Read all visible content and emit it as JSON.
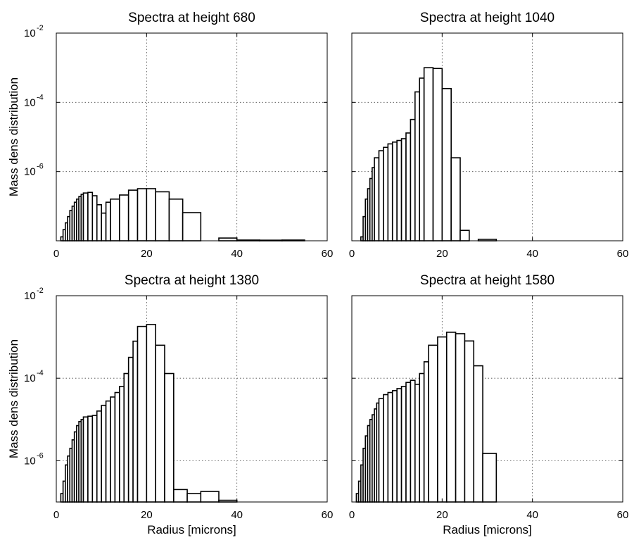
{
  "chart_data": [
    {
      "type": "bar",
      "title": "Spectra at height 680",
      "xlabel": "",
      "ylabel": "Mass dens distribution",
      "xlim": [
        0,
        60
      ],
      "ylim": [
        1e-08,
        0.01
      ],
      "yscale": "log",
      "grid": true,
      "xticks": [
        "0",
        "20",
        "40",
        "60"
      ],
      "yticks": [
        {
          "base": "10",
          "exp": "-2"
        },
        {
          "base": "10",
          "exp": "-4"
        },
        {
          "base": "10",
          "exp": "-6"
        }
      ],
      "bars": [
        [
          1.0,
          1.5,
          1.3e-08
        ],
        [
          1.5,
          2.0,
          2.1e-08
        ],
        [
          2.0,
          2.5,
          3.3e-08
        ],
        [
          2.5,
          3.0,
          5e-08
        ],
        [
          3.0,
          3.5,
          7.5e-08
        ],
        [
          3.5,
          4.0,
          1e-07
        ],
        [
          4.0,
          4.5,
          1.3e-07
        ],
        [
          4.5,
          5.0,
          1.6e-07
        ],
        [
          5.0,
          5.5,
          1.9e-07
        ],
        [
          5.5,
          6.0,
          2.2e-07
        ],
        [
          6.0,
          7.0,
          2.4e-07
        ],
        [
          7.0,
          8.0,
          2.5e-07
        ],
        [
          8.0,
          9.0,
          2e-07
        ],
        [
          9.0,
          10.0,
          1.1e-07
        ],
        [
          10.0,
          11.0,
          6.3e-08
        ],
        [
          11.0,
          12.0,
          1.3e-07
        ],
        [
          12.0,
          14.0,
          1.6e-07
        ],
        [
          14.0,
          16.0,
          2.1e-07
        ],
        [
          16.0,
          18.0,
          2.9e-07
        ],
        [
          18.0,
          20.0,
          3.2e-07
        ],
        [
          20.0,
          22.0,
          3.2e-07
        ],
        [
          22.0,
          25.0,
          2.6e-07
        ],
        [
          25.0,
          28.0,
          1.6e-07
        ],
        [
          28.0,
          32.0,
          6.5e-08
        ],
        [
          36.0,
          40.0,
          1.2e-08
        ],
        [
          40.0,
          45.0,
          1.05e-08
        ],
        [
          45.0,
          50.0,
          1.04e-08
        ],
        [
          50.0,
          55.0,
          1.05e-08
        ]
      ]
    },
    {
      "type": "bar",
      "title": "Spectra at height 1040",
      "xlabel": "",
      "ylabel": "",
      "xlim": [
        0,
        60
      ],
      "ylim": [
        1e-08,
        0.01
      ],
      "yscale": "log",
      "grid": true,
      "xticks": [
        "0",
        "20",
        "40",
        "60"
      ],
      "yticks": [],
      "bars": [
        [
          2.0,
          2.5,
          1.3e-08
        ],
        [
          2.5,
          3.0,
          5e-08
        ],
        [
          3.0,
          3.5,
          1.6e-07
        ],
        [
          3.5,
          4.0,
          3.2e-07
        ],
        [
          4.0,
          4.5,
          6.3e-07
        ],
        [
          4.5,
          5.0,
          1.3e-06
        ],
        [
          5.0,
          6.0,
          2.5e-06
        ],
        [
          6.0,
          7.0,
          4e-06
        ],
        [
          7.0,
          8.0,
          5e-06
        ],
        [
          8.0,
          9.0,
          6.3e-06
        ],
        [
          9.0,
          10.0,
          7.1e-06
        ],
        [
          10.0,
          11.0,
          7.9e-06
        ],
        [
          11.0,
          12.0,
          8.9e-06
        ],
        [
          12.0,
          13.0,
          1.3e-05
        ],
        [
          13.0,
          14.0,
          3.2e-05
        ],
        [
          14.0,
          15.0,
          0.0002
        ],
        [
          15.0,
          16.0,
          0.0005
        ],
        [
          16.0,
          18.0,
          0.001
        ],
        [
          18.0,
          20.0,
          0.00095
        ],
        [
          20.0,
          22.0,
          0.00025
        ],
        [
          22.0,
          24.0,
          2.5e-06
        ],
        [
          24.0,
          26.0,
          2e-08
        ],
        [
          28.0,
          32.0,
          1.1e-08
        ]
      ]
    },
    {
      "type": "bar",
      "title": "Spectra at height 1380",
      "xlabel": "Radius [microns]",
      "ylabel": "Mass dens distribution",
      "xlim": [
        0,
        60
      ],
      "ylim": [
        1e-07,
        0.01
      ],
      "yscale": "log",
      "grid": true,
      "xticks": [
        "0",
        "20",
        "40",
        "60"
      ],
      "yticks": [
        {
          "base": "10",
          "exp": "-2"
        },
        {
          "base": "10",
          "exp": "-4"
        },
        {
          "base": "10",
          "exp": "-6"
        }
      ],
      "bars": [
        [
          1.0,
          1.5,
          1.6e-07
        ],
        [
          1.5,
          2.0,
          3.2e-07
        ],
        [
          2.0,
          2.5,
          7.9e-07
        ],
        [
          2.5,
          3.0,
          1.3e-06
        ],
        [
          3.0,
          3.5,
          2e-06
        ],
        [
          3.5,
          4.0,
          3.2e-06
        ],
        [
          4.0,
          4.5,
          5e-06
        ],
        [
          4.5,
          5.0,
          7.1e-06
        ],
        [
          5.0,
          5.5,
          8.9e-06
        ],
        [
          5.5,
          6.0,
          1e-05
        ],
        [
          6.0,
          7.0,
          1.15e-05
        ],
        [
          7.0,
          8.0,
          1.2e-05
        ],
        [
          8.0,
          9.0,
          1.25e-05
        ],
        [
          9.0,
          10.0,
          1.6e-05
        ],
        [
          10.0,
          11.0,
          2.2e-05
        ],
        [
          11.0,
          12.0,
          2.8e-05
        ],
        [
          12.0,
          13.0,
          3.5e-05
        ],
        [
          13.0,
          14.0,
          4.5e-05
        ],
        [
          14.0,
          15.0,
          6.3e-05
        ],
        [
          15.0,
          16.0,
          0.00013
        ],
        [
          16.0,
          17.0,
          0.00032
        ],
        [
          17.0,
          18.0,
          0.00079
        ],
        [
          18.0,
          20.0,
          0.0018
        ],
        [
          20.0,
          22.0,
          0.002
        ],
        [
          22.0,
          24.0,
          0.00063
        ],
        [
          24.0,
          26.0,
          0.00013
        ],
        [
          26.0,
          29.0,
          2e-07
        ],
        [
          29.0,
          32.0,
          1.6e-07
        ],
        [
          32.0,
          36.0,
          1.8e-07
        ],
        [
          36.0,
          40.0,
          1.1e-07
        ]
      ]
    },
    {
      "type": "bar",
      "title": "Spectra at height 1580",
      "xlabel": "Radius [microns]",
      "ylabel": "",
      "xlim": [
        0,
        60
      ],
      "ylim": [
        1e-07,
        0.01
      ],
      "yscale": "log",
      "grid": true,
      "xticks": [
        "0",
        "20",
        "40",
        "60"
      ],
      "yticks": [],
      "bars": [
        [
          1.0,
          1.5,
          1.6e-07
        ],
        [
          1.5,
          2.0,
          3.2e-07
        ],
        [
          2.0,
          2.5,
          7.9e-07
        ],
        [
          2.5,
          3.0,
          2e-06
        ],
        [
          3.0,
          3.5,
          4e-06
        ],
        [
          3.5,
          4.0,
          7.1e-06
        ],
        [
          4.0,
          4.5,
          1e-05
        ],
        [
          4.5,
          5.0,
          1.3e-05
        ],
        [
          5.0,
          5.5,
          1.8e-05
        ],
        [
          5.5,
          6.0,
          2.5e-05
        ],
        [
          6.0,
          7.0,
          3.2e-05
        ],
        [
          7.0,
          8.0,
          4e-05
        ],
        [
          8.0,
          9.0,
          4.5e-05
        ],
        [
          9.0,
          10.0,
          5e-05
        ],
        [
          10.0,
          11.0,
          5.6e-05
        ],
        [
          11.0,
          12.0,
          6.3e-05
        ],
        [
          12.0,
          13.0,
          7.9e-05
        ],
        [
          13.0,
          14.0,
          8.9e-05
        ],
        [
          14.0,
          15.0,
          7.1e-05
        ],
        [
          15.0,
          16.0,
          0.00013
        ],
        [
          16.0,
          17.0,
          0.00025
        ],
        [
          17.0,
          19.0,
          0.00063
        ],
        [
          19.0,
          21.0,
          0.001
        ],
        [
          21.0,
          23.0,
          0.0013
        ],
        [
          23.0,
          25.0,
          0.0012
        ],
        [
          25.0,
          27.0,
          0.0008
        ],
        [
          27.0,
          29.0,
          0.0002
        ],
        [
          29.0,
          32.0,
          1.5e-06
        ]
      ]
    }
  ]
}
